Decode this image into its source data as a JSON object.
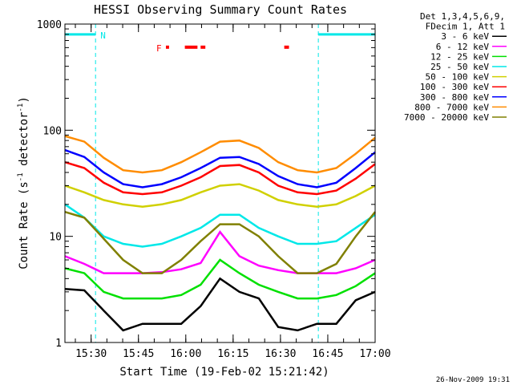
{
  "chart_data": {
    "type": "line",
    "title": "HESSI Observing Summary Count Rates",
    "xlabel": "Start Time (19-Feb-02 15:21:42)",
    "ylabel_main": "Count Rate (s",
    "ylabel_sup1": "-1",
    "ylabel_mid": " detector",
    "ylabel_sup2": "-1",
    "ylabel_end": ")",
    "x_range_minutes": [
      0,
      98.3
    ],
    "y_scale": "log",
    "ylim": [
      1,
      1000
    ],
    "x_ticks": [
      {
        "label": "15:30",
        "minute": 8.3
      },
      {
        "label": "15:45",
        "minute": 23.3
      },
      {
        "label": "16:00",
        "minute": 38.3
      },
      {
        "label": "16:15",
        "minute": 53.3
      },
      {
        "label": "16:30",
        "minute": 68.3
      },
      {
        "label": "16:45",
        "minute": 83.3
      },
      {
        "label": "17:00",
        "minute": 98.3
      }
    ],
    "y_ticks": [
      {
        "label": "1",
        "value": 1
      },
      {
        "label": "10",
        "value": 10
      },
      {
        "label": "100",
        "value": 100
      },
      {
        "label": "1000",
        "value": 1000
      }
    ],
    "legend_header": [
      "Det 1,3,4,5,6,9,",
      "FDecim 1, Att 1"
    ],
    "legend_placement": "right",
    "series": [
      {
        "name": "3 - 6 keV",
        "color": "#000000",
        "values": [
          3.2,
          3.1,
          2.0,
          1.3,
          1.5,
          1.5,
          1.5,
          2.2,
          4.0,
          3.0,
          2.6,
          1.4,
          1.3,
          1.5,
          1.5,
          2.5,
          3.0
        ]
      },
      {
        "name": "6 - 12 keV",
        "color": "#ff00ff",
        "values": [
          6.5,
          5.5,
          4.5,
          4.5,
          4.5,
          4.6,
          4.9,
          5.6,
          11,
          6.5,
          5.3,
          4.8,
          4.5,
          4.5,
          4.5,
          5.0,
          6.0
        ]
      },
      {
        "name": "12 - 25 keV",
        "color": "#00e000",
        "values": [
          5.0,
          4.5,
          3.0,
          2.6,
          2.6,
          2.6,
          2.8,
          3.5,
          6.0,
          4.5,
          3.5,
          3.0,
          2.6,
          2.6,
          2.8,
          3.4,
          4.5
        ]
      },
      {
        "name": "25 - 50 keV",
        "color": "#00e8e8",
        "values": [
          20,
          15,
          10,
          8.5,
          8,
          8.5,
          10,
          12,
          16,
          16,
          12,
          10,
          8.5,
          8.5,
          9,
          12,
          16
        ]
      },
      {
        "name": "50 - 100 keV",
        "color": "#d0d000",
        "values": [
          30,
          26,
          22,
          20,
          19,
          20,
          22,
          26,
          30,
          31,
          27,
          22,
          20,
          19,
          20,
          24,
          30
        ]
      },
      {
        "name": "100 - 300 keV",
        "color": "#ff0000",
        "values": [
          50,
          44,
          32,
          26,
          25,
          26,
          30,
          36,
          46,
          47,
          40,
          30,
          26,
          25,
          27,
          35,
          48
        ]
      },
      {
        "name": "300 - 800 keV",
        "color": "#0000ff",
        "values": [
          65,
          56,
          40,
          31,
          29,
          31,
          36,
          44,
          55,
          56,
          48,
          37,
          31,
          29,
          32,
          44,
          62
        ]
      },
      {
        "name": "800 - 7000 keV",
        "color": "#ff8c00",
        "values": [
          88,
          78,
          55,
          42,
          40,
          42,
          50,
          62,
          78,
          80,
          68,
          50,
          42,
          40,
          44,
          60,
          85
        ]
      },
      {
        "name": "7000 - 20000 keV",
        "color": "#808000",
        "values": [
          17,
          15,
          9.5,
          6,
          4.5,
          4.5,
          6,
          9,
          13,
          13,
          10,
          6.5,
          4.5,
          4.5,
          5.5,
          10,
          17
        ]
      }
    ],
    "annotations": {
      "night_label": "N",
      "flare_label": "F",
      "night_level": 800,
      "night_intervals_minutes": [
        [
          0,
          9.7
        ],
        [
          80.3,
          98.3
        ]
      ],
      "flare_intervals_minutes": [
        [
          32,
          33
        ],
        [
          38,
          42
        ],
        [
          43,
          44.5
        ],
        [
          69.5,
          71
        ]
      ]
    },
    "footer_date": "26-Nov-2009 19:31"
  }
}
